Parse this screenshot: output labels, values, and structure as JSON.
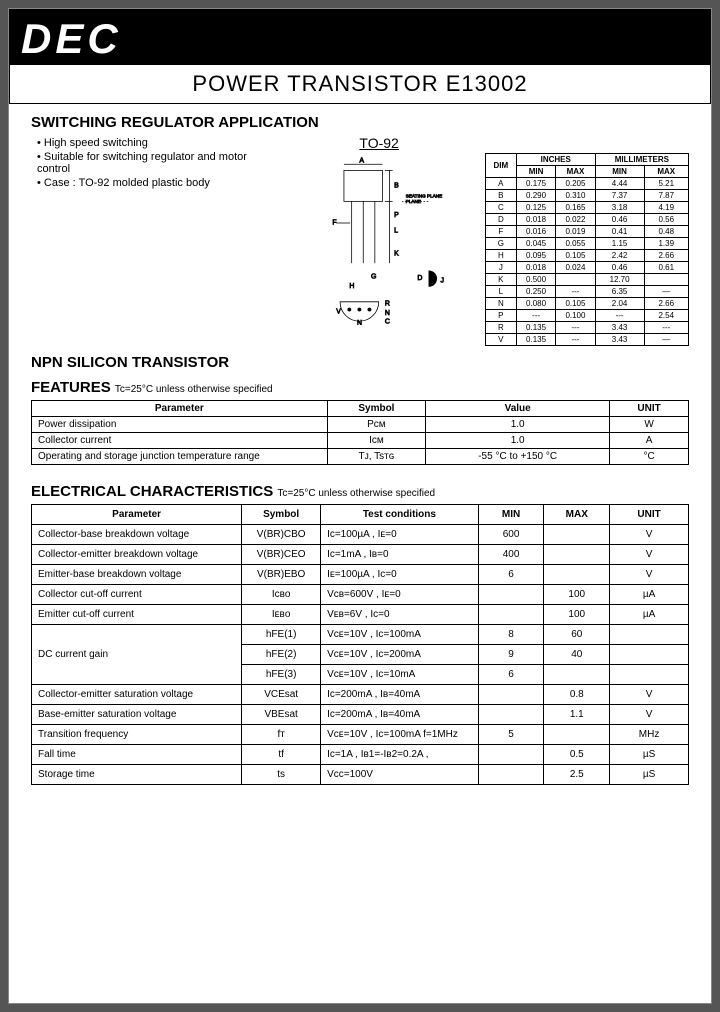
{
  "brand": "DEC",
  "title": "POWER TRANSISTOR  E13002",
  "app_heading": "SWITCHING REGULATOR APPLICATION",
  "package_label": "TO-92",
  "bullets": [
    "High speed switching",
    "Suitable for switching regulator and motor control",
    "Case : TO-92 molded plastic body"
  ],
  "npn_heading": "NPN SILICON TRANSISTOR",
  "features_heading": "FEATURES",
  "features_cond": "Tc=25°C unless otherwise specified",
  "features_cols": [
    "Parameter",
    "Symbol",
    "Value",
    "UNIT"
  ],
  "features_rows": [
    [
      "Power dissipation",
      "Pcм",
      "1.0",
      "W"
    ],
    [
      "Collector current",
      "Icм",
      "1.0",
      "A"
    ],
    [
      "Operating and storage junction temperature range",
      "Tᴊ, Tsᴛɢ",
      "-55 °C to +150 °C",
      "°C"
    ]
  ],
  "elec_heading": "ELECTRICAL CHARACTERISTICS",
  "elec_cond": "Tc=25°C unless otherwise specified",
  "elec_cols": [
    "Parameter",
    "Symbol",
    "Test conditions",
    "MIN",
    "MAX",
    "UNIT"
  ],
  "elec_rows": [
    {
      "p": "Collector-base breakdown voltage",
      "s": "V(BR)CBO",
      "t": "Ic=100µA , Iᴇ=0",
      "min": "600",
      "max": "",
      "u": "V"
    },
    {
      "p": "Collector-emitter breakdown voltage",
      "s": "V(BR)CEO",
      "t": "Ic=1mA , Iв=0",
      "min": "400",
      "max": "",
      "u": "V"
    },
    {
      "p": "Emitter-base breakdown voltage",
      "s": "V(BR)EBO",
      "t": "Iᴇ=100µA , Ic=0",
      "min": "6",
      "max": "",
      "u": "V"
    },
    {
      "p": "Collector cut-off current",
      "s": "Icʙo",
      "t": "Vcв=600V , Iᴇ=0",
      "min": "",
      "max": "100",
      "u": "µA"
    },
    {
      "p": "Emitter cut-off current",
      "s": "Iᴇвo",
      "t": "Vᴇв=6V , Ic=0",
      "min": "",
      "max": "100",
      "u": "µA"
    }
  ],
  "dc_gain_label": "DC current gain",
  "dc_gain_rows": [
    {
      "s": "hFE(1)",
      "t": "Vcᴇ=10V , Ic=100mA",
      "min": "8",
      "max": "60",
      "u": ""
    },
    {
      "s": "hFE(2)",
      "t": "Vcᴇ=10V , Ic=200mA",
      "min": "9",
      "max": "40",
      "u": ""
    },
    {
      "s": "hFE(3)",
      "t": "Vcᴇ=10V , Ic=10mA",
      "min": "6",
      "max": "",
      "u": ""
    }
  ],
  "elec_rows2": [
    {
      "p": "Collector-emitter saturation voltage",
      "s": "VCEsat",
      "t": "Ic=200mA , Iв=40mA",
      "min": "",
      "max": "0.8",
      "u": "V"
    },
    {
      "p": "Base-emitter saturation voltage",
      "s": "VBEsat",
      "t": "Ic=200mA , Iв=40mA",
      "min": "",
      "max": "1.1",
      "u": "V"
    },
    {
      "p": "Transition frequency",
      "s": "fᴛ",
      "t": "Vcᴇ=10V , Ic=100mA f=1MHz",
      "min": "5",
      "max": "",
      "u": "MHz"
    },
    {
      "p": "Fall time",
      "s": "tf",
      "t": "Ic=1A , Iв1=-Iв2=0.2A ,",
      "min": "",
      "max": "0.5",
      "u": "µS"
    },
    {
      "p": "Storage time",
      "s": "ts",
      "t": "Vcc=100V",
      "min": "",
      "max": "2.5",
      "u": "µS"
    }
  ],
  "dim_heading": "DIM",
  "dim_units": {
    "in": "INCHES",
    "mm": "MILLIMETERS"
  },
  "dim_subcols": [
    "MIN",
    "MAX",
    "MIN",
    "MAX"
  ],
  "dim_rows": [
    [
      "A",
      "0.175",
      "0.205",
      "4.44",
      "5.21"
    ],
    [
      "B",
      "0.290",
      "0.310",
      "7.37",
      "7.87"
    ],
    [
      "C",
      "0.125",
      "0.165",
      "3.18",
      "4.19"
    ],
    [
      "D",
      "0.018",
      "0.022",
      "0.46",
      "0.56"
    ],
    [
      "F",
      "0.016",
      "0.019",
      "0.41",
      "0.48"
    ],
    [
      "G",
      "0.045",
      "0.055",
      "1.15",
      "1.39"
    ],
    [
      "H",
      "0.095",
      "0.105",
      "2.42",
      "2.66"
    ],
    [
      "J",
      "0.018",
      "0.024",
      "0.46",
      "0.61"
    ],
    [
      "K",
      "0.500",
      "",
      "12.70",
      ""
    ],
    [
      "L",
      "0.250",
      "---",
      "6.35",
      "—"
    ],
    [
      "N",
      "0.080",
      "0.105",
      "2.04",
      "2.66"
    ],
    [
      "P",
      "---",
      "0.100",
      "---",
      "2.54"
    ],
    [
      "R",
      "0.135",
      "---",
      "3.43",
      "---"
    ],
    [
      "V",
      "0.135",
      "---",
      "3.43",
      "—"
    ]
  ],
  "seating_plane": "SEATING PLANE"
}
